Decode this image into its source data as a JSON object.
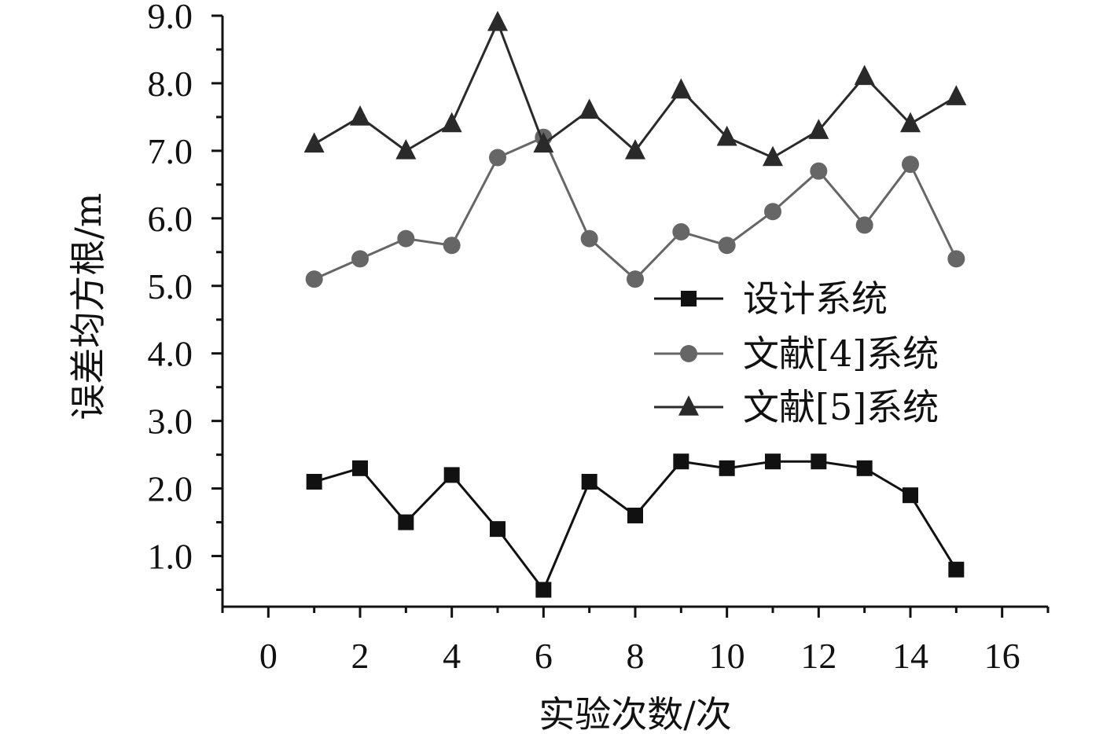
{
  "chart_data": {
    "type": "line",
    "title": "",
    "xlabel": "实验次数/次",
    "ylabel": "误差均方根/m",
    "x": [
      1,
      2,
      3,
      4,
      5,
      6,
      7,
      8,
      9,
      10,
      11,
      12,
      13,
      14,
      15
    ],
    "xlim": [
      -1,
      17
    ],
    "ylim": [
      0.25,
      9.0
    ],
    "x_ticks": [
      0,
      2,
      4,
      6,
      8,
      10,
      12,
      14,
      16
    ],
    "x_tick_labels": [
      "0",
      "2",
      "4",
      "6",
      "8",
      "10",
      "12",
      "14",
      "16"
    ],
    "y_ticks": [
      1.0,
      2.0,
      3.0,
      4.0,
      5.0,
      6.0,
      7.0,
      8.0,
      9.0
    ],
    "y_tick_labels": [
      "1.0",
      "2.0",
      "3.0",
      "4.0",
      "5.0",
      "6.0",
      "7.0",
      "8.0",
      "9.0"
    ],
    "grid": false,
    "legend_position": "center-right",
    "series": [
      {
        "name": "设计系统",
        "marker": "square",
        "color": "#111111",
        "values": [
          2.1,
          2.3,
          1.5,
          2.2,
          1.4,
          0.5,
          2.1,
          1.6,
          2.4,
          2.3,
          2.4,
          2.4,
          2.3,
          1.9,
          0.8
        ]
      },
      {
        "name": "文献[4]系统",
        "marker": "circle",
        "color": "#666666",
        "values": [
          5.1,
          5.4,
          5.7,
          5.6,
          6.9,
          7.2,
          5.7,
          5.1,
          5.8,
          5.6,
          6.1,
          6.7,
          5.9,
          6.8,
          5.4
        ]
      },
      {
        "name": "文献[5]系统",
        "marker": "triangle",
        "color": "#2a2a2a",
        "values": [
          7.1,
          7.5,
          7.0,
          7.4,
          8.9,
          7.1,
          7.6,
          7.0,
          7.9,
          7.2,
          6.9,
          7.3,
          8.1,
          7.4,
          7.8
        ]
      }
    ]
  }
}
